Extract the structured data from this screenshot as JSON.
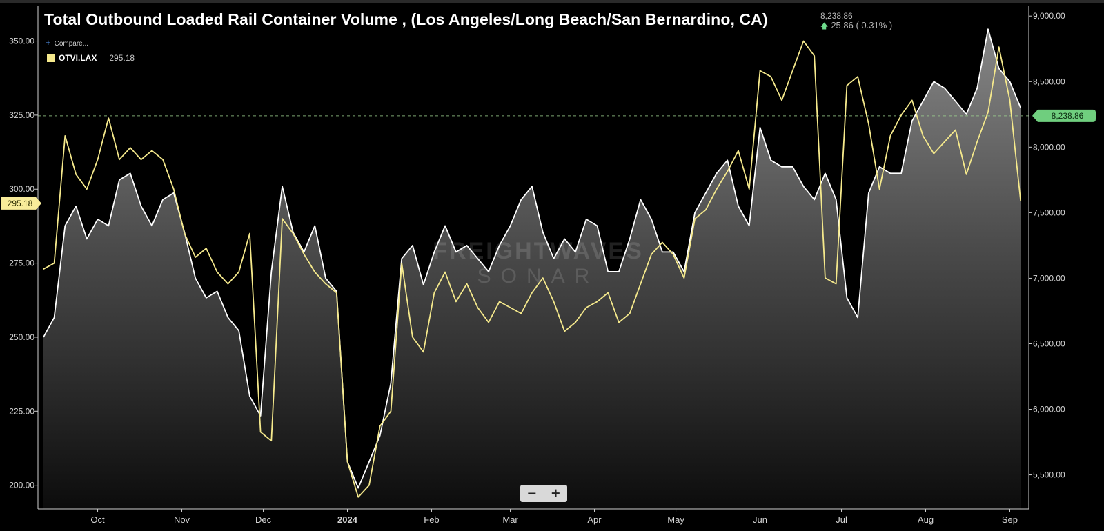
{
  "title": "Total Outbound Loaded Rail Container Volume , (Los Angeles/Long Beach/San Bernardino, CA)",
  "header": {
    "value": "8,238.86",
    "change": "25.86 ( 0.31% )"
  },
  "compare_label": "Compare...",
  "legend": {
    "symbol": "OTVI.LAX",
    "value": "295.18",
    "color": "#f5e98c"
  },
  "current_right_badge": "8,238.86",
  "current_left_badge": "295.18",
  "watermark": {
    "line1": "FREIGHTWAVES",
    "line2": "SONAR"
  },
  "zoom": {
    "minus": "−",
    "plus": "+"
  },
  "colors": {
    "white_series": "#ffffff",
    "yellow_series": "#f5e98c",
    "green_badge": "#6fce7e",
    "yellow_badge": "#f8ec9a"
  },
  "chart_data": {
    "type": "line",
    "x_ticks": [
      "Oct",
      "Nov",
      "Dec",
      "2024",
      "Feb",
      "Mar",
      "Apr",
      "May",
      "Jun",
      "Jul",
      "Aug",
      "Sep"
    ],
    "left_axis": {
      "ticks": [
        "200.00",
        "225.00",
        "250.00",
        "275.00",
        "300.00",
        "325.00",
        "350.00"
      ],
      "range": [
        192,
        362
      ]
    },
    "right_axis": {
      "ticks": [
        "5,500.00",
        "6,000.00",
        "6,500.00",
        "7,000.00",
        "7,500.00",
        "8,000.00",
        "8,500.00",
        "9,000.00"
      ],
      "range": [
        5240,
        9080
      ]
    },
    "reference_line": {
      "axis": "right",
      "value": 8238.86
    },
    "series": [
      {
        "axis": "right",
        "color": "#ffffff",
        "filled": true,
        "x": [
          "2023-09-11",
          "2023-09-15",
          "2023-09-19",
          "2023-09-23",
          "2023-09-27",
          "2023-10-01",
          "2023-10-05",
          "2023-10-09",
          "2023-10-13",
          "2023-10-17",
          "2023-10-21",
          "2023-10-25",
          "2023-10-29",
          "2023-11-02",
          "2023-11-06",
          "2023-11-10",
          "2023-11-14",
          "2023-11-18",
          "2023-11-22",
          "2023-11-26",
          "2023-11-30",
          "2023-12-04",
          "2023-12-08",
          "2023-12-12",
          "2023-12-16",
          "2023-12-20",
          "2023-12-24",
          "2023-12-28",
          "2024-01-01",
          "2024-01-05",
          "2024-01-09",
          "2024-01-13",
          "2024-01-17",
          "2024-01-21",
          "2024-01-25",
          "2024-01-29",
          "2024-02-02",
          "2024-02-06",
          "2024-02-10",
          "2024-02-14",
          "2024-02-18",
          "2024-02-22",
          "2024-02-26",
          "2024-03-01",
          "2024-03-05",
          "2024-03-09",
          "2024-03-13",
          "2024-03-17",
          "2024-03-21",
          "2024-03-25",
          "2024-03-29",
          "2024-04-02",
          "2024-04-06",
          "2024-04-10",
          "2024-04-14",
          "2024-04-18",
          "2024-04-22",
          "2024-04-26",
          "2024-04-30",
          "2024-05-04",
          "2024-05-08",
          "2024-05-12",
          "2024-05-16",
          "2024-05-20",
          "2024-05-24",
          "2024-05-28",
          "2024-06-01",
          "2024-06-05",
          "2024-06-09",
          "2024-06-13",
          "2024-06-17",
          "2024-06-21",
          "2024-06-25",
          "2024-06-29",
          "2024-07-03",
          "2024-07-07",
          "2024-07-11",
          "2024-07-15",
          "2024-07-19",
          "2024-07-23",
          "2024-07-27",
          "2024-07-31",
          "2024-08-04",
          "2024-08-08",
          "2024-08-12",
          "2024-08-16",
          "2024-08-20",
          "2024-08-24",
          "2024-08-28",
          "2024-09-01",
          "2024-09-05"
        ],
        "values": [
          6550,
          6700,
          7400,
          7550,
          7300,
          7450,
          7400,
          7750,
          7800,
          7550,
          7400,
          7600,
          7650,
          7350,
          7000,
          6850,
          6900,
          6700,
          6600,
          6100,
          5950,
          7050,
          7700,
          7350,
          7200,
          7400,
          7000,
          6900,
          5600,
          5400,
          5600,
          5800,
          6200,
          7150,
          7250,
          6950,
          7200,
          7400,
          7200,
          7250,
          7150,
          7050,
          7250,
          7400,
          7600,
          7700,
          7350,
          7150,
          7300,
          7200,
          7450,
          7400,
          7050,
          7050,
          7300,
          7600,
          7450,
          7200,
          7200,
          7050,
          7500,
          7650,
          7800,
          7900,
          7550,
          7400,
          8150,
          7900,
          7850,
          7850,
          7700,
          7600,
          7800,
          7600,
          6850,
          6700,
          7650,
          7850,
          7800,
          7800,
          8200,
          8350,
          8500,
          8450,
          8350,
          8250,
          8450,
          8900,
          8600,
          8500,
          8300
        ]
      },
      {
        "axis": "left",
        "color": "#f5e98c",
        "filled": false,
        "x": [
          "2023-09-11",
          "2023-09-15",
          "2023-09-19",
          "2023-09-23",
          "2023-09-27",
          "2023-10-01",
          "2023-10-05",
          "2023-10-09",
          "2023-10-13",
          "2023-10-17",
          "2023-10-21",
          "2023-10-25",
          "2023-10-29",
          "2023-11-02",
          "2023-11-06",
          "2023-11-10",
          "2023-11-14",
          "2023-11-18",
          "2023-11-22",
          "2023-11-26",
          "2023-11-30",
          "2023-12-04",
          "2023-12-08",
          "2023-12-12",
          "2023-12-16",
          "2023-12-20",
          "2023-12-24",
          "2023-12-28",
          "2024-01-01",
          "2024-01-05",
          "2024-01-09",
          "2024-01-13",
          "2024-01-17",
          "2024-01-21",
          "2024-01-25",
          "2024-01-29",
          "2024-02-02",
          "2024-02-06",
          "2024-02-10",
          "2024-02-14",
          "2024-02-18",
          "2024-02-22",
          "2024-02-26",
          "2024-03-01",
          "2024-03-05",
          "2024-03-09",
          "2024-03-13",
          "2024-03-17",
          "2024-03-21",
          "2024-03-25",
          "2024-03-29",
          "2024-04-02",
          "2024-04-06",
          "2024-04-10",
          "2024-04-14",
          "2024-04-18",
          "2024-04-22",
          "2024-04-26",
          "2024-04-30",
          "2024-05-04",
          "2024-05-08",
          "2024-05-12",
          "2024-05-16",
          "2024-05-20",
          "2024-05-24",
          "2024-05-28",
          "2024-06-01",
          "2024-06-05",
          "2024-06-09",
          "2024-06-13",
          "2024-06-17",
          "2024-06-21",
          "2024-06-25",
          "2024-06-29",
          "2024-07-03",
          "2024-07-07",
          "2024-07-11",
          "2024-07-15",
          "2024-07-19",
          "2024-07-23",
          "2024-07-27",
          "2024-07-31",
          "2024-08-04",
          "2024-08-08",
          "2024-08-12",
          "2024-08-16",
          "2024-08-20",
          "2024-08-24",
          "2024-08-28",
          "2024-09-01",
          "2024-09-05"
        ],
        "values": [
          273,
          275,
          318,
          305,
          300,
          310,
          324,
          310,
          314,
          310,
          313,
          310,
          300,
          285,
          277,
          280,
          272,
          268,
          272,
          285,
          218,
          215,
          290,
          285,
          278,
          272,
          268,
          265,
          208,
          196,
          200,
          220,
          225,
          275,
          250,
          245,
          265,
          272,
          262,
          268,
          260,
          255,
          262,
          260,
          258,
          265,
          270,
          262,
          252,
          255,
          260,
          262,
          265,
          255,
          258,
          268,
          278,
          282,
          278,
          270,
          290,
          293,
          300,
          306,
          313,
          300,
          340,
          338,
          330,
          340,
          350,
          345,
          270,
          268,
          335,
          338,
          322,
          300,
          318,
          325,
          330,
          318,
          312,
          316,
          320,
          305,
          316,
          326,
          348,
          330,
          296
        ]
      }
    ]
  }
}
